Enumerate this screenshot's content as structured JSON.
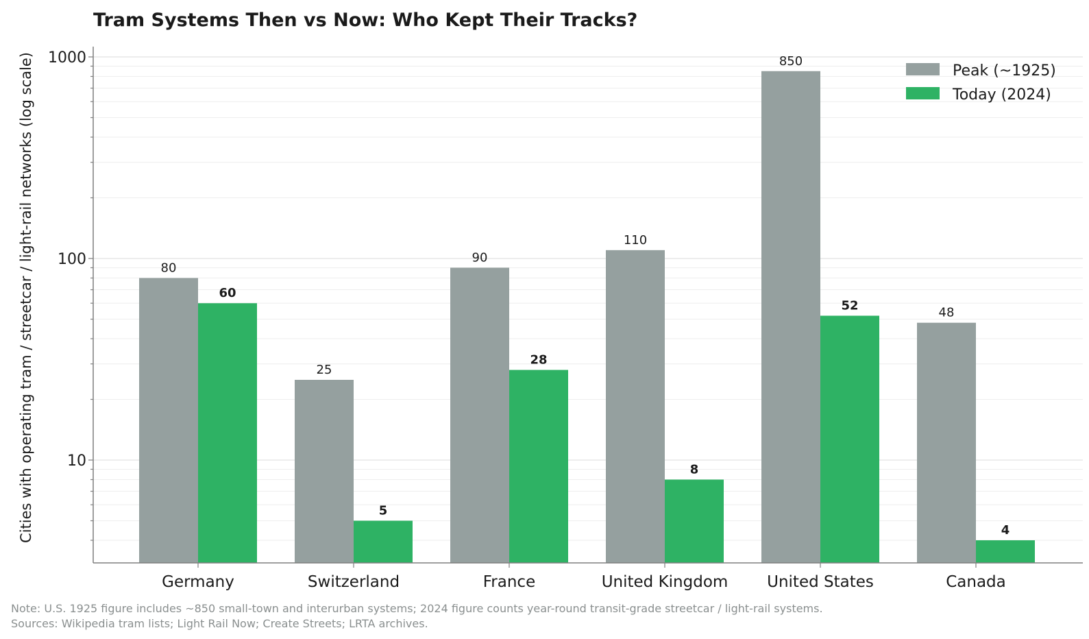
{
  "chart_data": {
    "type": "bar",
    "title": "Tram Systems Then vs Now: Who Kept Their Tracks?",
    "ylabel": "Cities with operating tram / streetcar / light-rail networks (log scale)",
    "xlabel": "",
    "yscale": "log",
    "ylim": [
      3.1,
      1150
    ],
    "yticks": [
      {
        "value": 10,
        "label": "10"
      },
      {
        "value": 100,
        "label": "100"
      },
      {
        "value": 1000,
        "label": "1000"
      }
    ],
    "grid": true,
    "legend_position": "top-right",
    "categories": [
      "Germany",
      "Switzerland",
      "France",
      "United Kingdom",
      "United States",
      "Canada"
    ],
    "series": [
      {
        "name": "Peak (~1925)",
        "color": "#95a09f",
        "label_style": "normal",
        "values": [
          80,
          25,
          90,
          110,
          850,
          48
        ],
        "labels": [
          "80",
          "25",
          "90",
          "110",
          "850",
          "48"
        ]
      },
      {
        "name": "Today (2024)",
        "color": "#2eb264",
        "label_style": "bold",
        "values": [
          60,
          5,
          28,
          8,
          52,
          4
        ],
        "labels": [
          "60",
          "5",
          "28",
          "8",
          "52",
          "4"
        ]
      }
    ]
  },
  "notes": {
    "line1": "Note: U.S. 1925 figure includes ~850 small-town and interurban systems; 2024 figure counts year-round transit-grade streetcar / light-rail systems.",
    "line2": "Sources: Wikipedia tram lists; Light Rail Now; Create Streets; LRTA archives."
  }
}
